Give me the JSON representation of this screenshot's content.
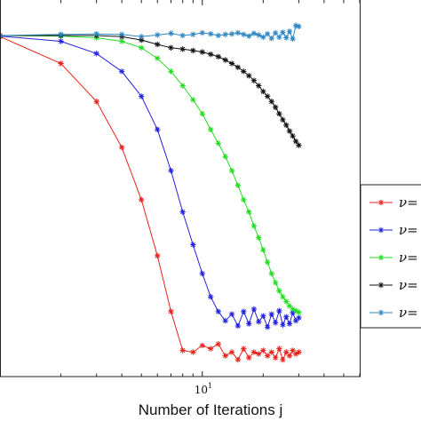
{
  "chart_data": {
    "type": "line",
    "title": "",
    "xlabel": "Number of Iterations j",
    "ylabel": "",
    "xscale": "log",
    "yscale": "log",
    "xlim": [
      1,
      60
    ],
    "grid": false,
    "legend_placement": "right",
    "x_tick_labels": [
      {
        "base": "10",
        "exp": "1"
      }
    ],
    "series": [
      {
        "name": "ν=",
        "color": "#e8221c",
        "x": [
          1,
          2,
          3,
          4,
          5,
          6,
          7,
          8,
          9,
          10,
          11,
          12,
          13,
          14,
          15,
          16,
          17,
          18,
          19,
          20,
          21,
          22,
          23,
          24,
          25,
          26,
          27,
          28,
          29,
          30
        ],
        "y": [
          0.98,
          0.6,
          0.3,
          0.13,
          0.05,
          0.018,
          0.0065,
          0.0032,
          0.0031,
          0.0035,
          0.0033,
          0.0036,
          0.0029,
          0.0031,
          0.0027,
          0.0033,
          0.0028,
          0.0031,
          0.003,
          0.0032,
          0.0029,
          0.0031,
          0.0028,
          0.0033,
          0.0027,
          0.0031,
          0.0029,
          0.0032,
          0.003,
          0.0031
        ]
      },
      {
        "name": "ν=",
        "color": "#2222dd",
        "x": [
          1,
          2,
          3,
          4,
          5,
          6,
          7,
          8,
          9,
          10,
          11,
          12,
          13,
          14,
          15,
          16,
          17,
          18,
          19,
          20,
          21,
          22,
          23,
          24,
          25,
          26,
          27,
          28,
          29,
          30
        ],
        "y": [
          0.99,
          0.9,
          0.72,
          0.52,
          0.33,
          0.18,
          0.085,
          0.04,
          0.022,
          0.013,
          0.0085,
          0.0065,
          0.0055,
          0.0062,
          0.005,
          0.0065,
          0.0052,
          0.0068,
          0.0054,
          0.006,
          0.0049,
          0.0062,
          0.0053,
          0.0066,
          0.0051,
          0.0059,
          0.0052,
          0.0064,
          0.0055,
          0.0058
        ]
      },
      {
        "name": "ν=",
        "color": "#22dd22",
        "x": [
          1,
          2,
          3,
          4,
          5,
          6,
          7,
          8,
          9,
          10,
          11,
          12,
          13,
          14,
          15,
          16,
          17,
          18,
          19,
          20,
          21,
          22,
          23,
          24,
          25,
          26,
          27,
          28,
          29,
          30
        ],
        "y": [
          1.0,
          0.99,
          0.96,
          0.9,
          0.8,
          0.66,
          0.52,
          0.4,
          0.31,
          0.24,
          0.18,
          0.14,
          0.11,
          0.085,
          0.065,
          0.05,
          0.04,
          0.031,
          0.025,
          0.02,
          0.016,
          0.013,
          0.011,
          0.0095,
          0.0085,
          0.0078,
          0.0072,
          0.0068,
          0.0066,
          0.0064
        ]
      },
      {
        "name": "ν=",
        "color": "#111111",
        "x": [
          1,
          2,
          3,
          4,
          5,
          6,
          7,
          8,
          9,
          10,
          11,
          12,
          13,
          14,
          15,
          16,
          17,
          18,
          19,
          20,
          21,
          22,
          23,
          24,
          25,
          26,
          27,
          28,
          29,
          30
        ],
        "y": [
          1.0,
          1.0,
          1.0,
          0.98,
          0.92,
          0.85,
          0.8,
          0.78,
          0.76,
          0.74,
          0.71,
          0.68,
          0.64,
          0.6,
          0.56,
          0.52,
          0.48,
          0.44,
          0.4,
          0.36,
          0.33,
          0.3,
          0.27,
          0.24,
          0.215,
          0.195,
          0.175,
          0.16,
          0.145,
          0.135
        ]
      },
      {
        "name": "ν=",
        "color": "#2e86c1",
        "x": [
          1,
          2,
          3,
          4,
          5,
          6,
          7,
          8,
          9,
          10,
          11,
          12,
          13,
          14,
          15,
          16,
          17,
          18,
          19,
          20,
          21,
          22,
          23,
          24,
          25,
          26,
          27,
          28,
          29,
          30
        ],
        "y": [
          1.0,
          1.02,
          1.03,
          1.02,
          0.98,
          1.01,
          1.04,
          1.0,
          1.02,
          1.05,
          1.03,
          1.0,
          1.02,
          1.03,
          1.05,
          1.02,
          0.99,
          1.04,
          1.01,
          0.97,
          1.03,
          0.95,
          1.05,
          0.97,
          1.06,
          0.96,
          1.08,
          0.94,
          1.2,
          1.18
        ]
      }
    ]
  }
}
